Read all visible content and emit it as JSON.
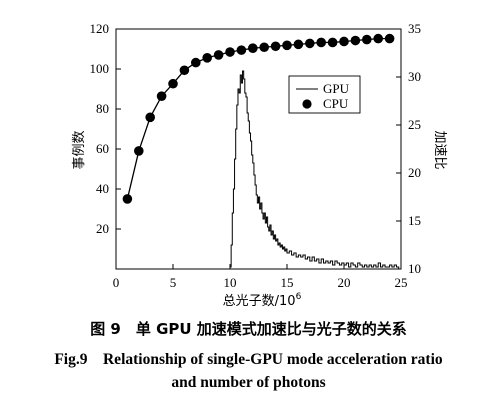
{
  "chart_data": {
    "type": "line",
    "xlabel": "总光子数/10",
    "xlabel_sup": "6",
    "ylabel_left": "事例数",
    "ylabel_right": "加速比",
    "xlim": [
      0,
      25
    ],
    "ylim_left": [
      0,
      120
    ],
    "ylim_right": [
      10,
      35
    ],
    "x_ticks": [
      0,
      5,
      10,
      15,
      20,
      25
    ],
    "y_left_ticks": [
      20,
      40,
      60,
      80,
      100,
      120
    ],
    "y_right_ticks": [
      10,
      15,
      20,
      25,
      30,
      35
    ],
    "legend_position": "top-right",
    "series": [
      {
        "name": "GPU",
        "style": "histogram",
        "axis": "left",
        "bins": [
          [
            10.0,
            1
          ],
          [
            10.1,
            12
          ],
          [
            10.2,
            28
          ],
          [
            10.3,
            40
          ],
          [
            10.4,
            55
          ],
          [
            10.5,
            70
          ],
          [
            10.6,
            82
          ],
          [
            10.7,
            90
          ],
          [
            10.8,
            88
          ],
          [
            10.9,
            97
          ],
          [
            11.0,
            93
          ],
          [
            11.1,
            99
          ],
          [
            11.2,
            95
          ],
          [
            11.3,
            88
          ],
          [
            11.4,
            86
          ],
          [
            11.5,
            78
          ],
          [
            11.6,
            74
          ],
          [
            11.7,
            68
          ],
          [
            11.8,
            64
          ],
          [
            11.9,
            57
          ],
          [
            12.0,
            53
          ],
          [
            12.1,
            47
          ],
          [
            12.2,
            42
          ],
          [
            12.3,
            37
          ],
          [
            12.4,
            33
          ],
          [
            12.5,
            36
          ],
          [
            12.6,
            30
          ],
          [
            12.7,
            33
          ],
          [
            12.8,
            28
          ],
          [
            12.9,
            25
          ],
          [
            13.0,
            28
          ],
          [
            13.1,
            23
          ],
          [
            13.2,
            26
          ],
          [
            13.3,
            21
          ],
          [
            13.4,
            19
          ],
          [
            13.5,
            22
          ],
          [
            13.6,
            17
          ],
          [
            13.7,
            19
          ],
          [
            13.8,
            15
          ],
          [
            13.9,
            17
          ],
          [
            14.0,
            14
          ],
          [
            14.1,
            15
          ],
          [
            14.2,
            12
          ],
          [
            14.3,
            13
          ],
          [
            14.4,
            11
          ],
          [
            14.5,
            12
          ],
          [
            14.6,
            10
          ],
          [
            14.7,
            11
          ],
          [
            14.8,
            9
          ],
          [
            14.9,
            10
          ],
          [
            15.0,
            8
          ],
          [
            15.2,
            9
          ],
          [
            15.4,
            7
          ],
          [
            15.6,
            8
          ],
          [
            15.8,
            6
          ],
          [
            16.0,
            7
          ],
          [
            16.2,
            6
          ],
          [
            16.4,
            7
          ],
          [
            16.6,
            5
          ],
          [
            16.8,
            6
          ],
          [
            17.0,
            4
          ],
          [
            17.2,
            6
          ],
          [
            17.4,
            4
          ],
          [
            17.6,
            5
          ],
          [
            17.8,
            3
          ],
          [
            18.0,
            5
          ],
          [
            18.2,
            3
          ],
          [
            18.4,
            4
          ],
          [
            18.6,
            3
          ],
          [
            18.8,
            4
          ],
          [
            19.0,
            2
          ],
          [
            19.2,
            4
          ],
          [
            19.4,
            3
          ],
          [
            19.6,
            2
          ],
          [
            19.8,
            3
          ],
          [
            20.0,
            2
          ],
          [
            20.2,
            3
          ],
          [
            20.4,
            1
          ],
          [
            20.6,
            3
          ],
          [
            20.8,
            2
          ],
          [
            21.0,
            1
          ],
          [
            21.2,
            3
          ],
          [
            21.4,
            2
          ],
          [
            21.6,
            1
          ],
          [
            21.8,
            2
          ],
          [
            22.0,
            1
          ],
          [
            22.2,
            2
          ],
          [
            22.4,
            1
          ],
          [
            22.6,
            2
          ],
          [
            22.8,
            1
          ],
          [
            23.0,
            3
          ],
          [
            23.2,
            1
          ],
          [
            23.4,
            2
          ],
          [
            23.6,
            1
          ],
          [
            23.8,
            1
          ],
          [
            24.0,
            2
          ],
          [
            24.2,
            1
          ],
          [
            24.4,
            2
          ],
          [
            24.6,
            1
          ],
          [
            24.8,
            0
          ]
        ]
      },
      {
        "name": "CPU",
        "style": "line-marker",
        "axis": "right",
        "x": [
          1,
          2,
          3,
          4,
          5,
          6,
          7,
          8,
          9,
          10,
          11,
          12,
          13,
          14,
          15,
          16,
          17,
          18,
          19,
          20,
          21,
          22,
          23,
          24
        ],
        "y": [
          17.3,
          22.3,
          25.8,
          28.0,
          29.3,
          30.7,
          31.5,
          32.0,
          32.3,
          32.6,
          32.8,
          33.0,
          33.1,
          33.2,
          33.3,
          33.4,
          33.5,
          33.6,
          33.6,
          33.7,
          33.8,
          33.9,
          34.0,
          34.0
        ]
      }
    ]
  },
  "caption": {
    "cn": "图 9　单 GPU 加速模式加速比与光子数的关系",
    "en_line1": "Fig.9　Relationship of single-GPU mode acceleration ratio",
    "en_line2": "and number of photons"
  }
}
